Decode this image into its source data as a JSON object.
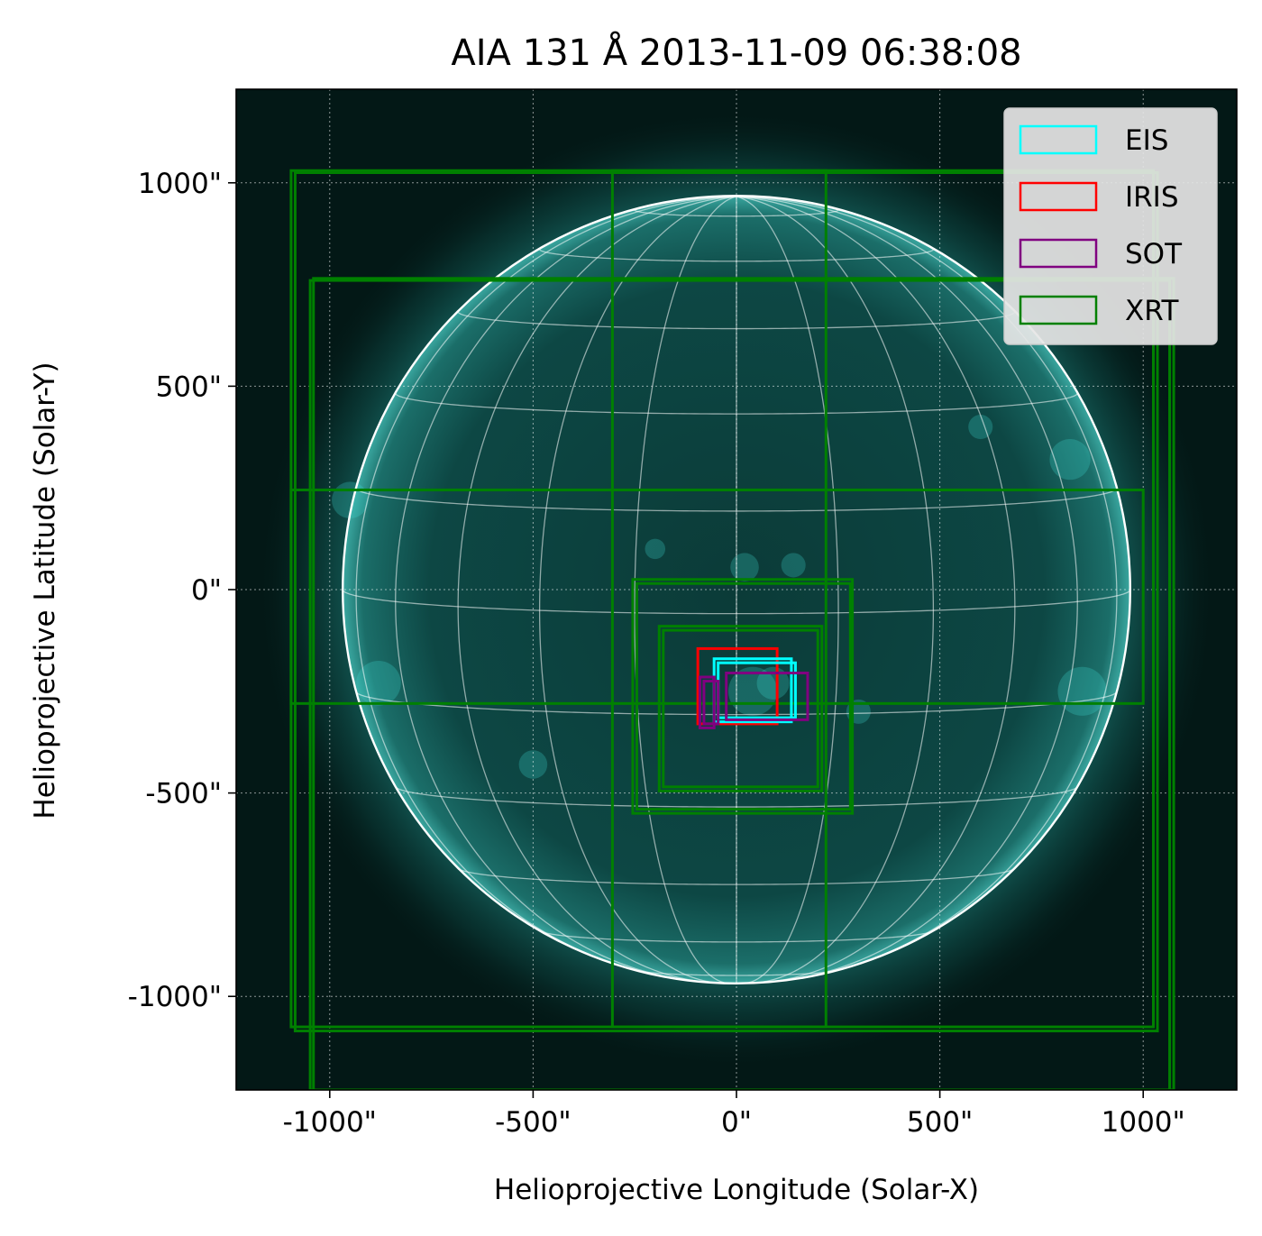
{
  "chart_data": {
    "type": "image",
    "title": "AIA 131 Å 2013-11-09 06:38:08",
    "xlabel": "Helioprojective Longitude (Solar-X)",
    "ylabel": "Helioprojective Latitude (Solar-Y)",
    "xlim": [
      -1230,
      1230
    ],
    "ylim": [
      -1230,
      1230
    ],
    "x_ticks": [
      {
        "value": -1000,
        "label": "-1000\""
      },
      {
        "value": -500,
        "label": "-500\""
      },
      {
        "value": 0,
        "label": "0\""
      },
      {
        "value": 500,
        "label": "500\""
      },
      {
        "value": 1000,
        "label": "1000\""
      }
    ],
    "y_ticks": [
      {
        "value": 1000,
        "label": "1000\""
      },
      {
        "value": 500,
        "label": "500\""
      },
      {
        "value": 0,
        "label": "0\""
      },
      {
        "value": -500,
        "label": "-500\""
      },
      {
        "value": -1000,
        "label": "-1000\""
      }
    ],
    "grid": true,
    "solar_radius_arcsec": 968,
    "background_color": "#031816",
    "legend": {
      "position": "top-right",
      "entries": [
        {
          "name": "EIS",
          "color": "#00ffff"
        },
        {
          "name": "IRIS",
          "color": "#ff0000"
        },
        {
          "name": "SOT",
          "color": "#800080"
        },
        {
          "name": "XRT",
          "color": "#008000"
        }
      ]
    },
    "fields_of_view": [
      {
        "instrument": "XRT",
        "x": [
          -1095,
          1025
        ],
        "y": [
          -1075,
          1030
        ]
      },
      {
        "instrument": "XRT",
        "x": [
          -1085,
          1035
        ],
        "y": [
          -1085,
          1025
        ]
      },
      {
        "instrument": "XRT",
        "x": [
          -1040,
          1075
        ],
        "y": [
          -1230,
          765
        ]
      },
      {
        "instrument": "XRT",
        "x": [
          -1048,
          1065
        ],
        "y": [
          -1230,
          760
        ]
      },
      {
        "instrument": "XRT",
        "x": [
          -305,
          220
        ],
        "y": [
          -1075,
          1030
        ]
      },
      {
        "instrument": "XRT",
        "x": [
          -1095,
          1000
        ],
        "y": [
          -280,
          245
        ]
      },
      {
        "instrument": "XRT",
        "x": [
          -255,
          285
        ],
        "y": [
          -550,
          25
        ]
      },
      {
        "instrument": "XRT",
        "x": [
          -245,
          280
        ],
        "y": [
          -540,
          15
        ]
      },
      {
        "instrument": "XRT",
        "x": [
          -190,
          210
        ],
        "y": [
          -495,
          -90
        ]
      },
      {
        "instrument": "XRT",
        "x": [
          -180,
          200
        ],
        "y": [
          -485,
          -100
        ]
      },
      {
        "instrument": "IRIS",
        "x": [
          -95,
          100
        ],
        "y": [
          -330,
          -145
        ]
      },
      {
        "instrument": "EIS",
        "x": [
          -55,
          135
        ],
        "y": [
          -325,
          -170
        ]
      },
      {
        "instrument": "EIS",
        "x": [
          -45,
          145
        ],
        "y": [
          -315,
          -180
        ]
      },
      {
        "instrument": "SOT",
        "x": [
          -25,
          175
        ],
        "y": [
          -320,
          -205
        ]
      },
      {
        "instrument": "SOT",
        "x": [
          -90,
          -55
        ],
        "y": [
          -340,
          -215
        ]
      },
      {
        "instrument": "SOT",
        "x": [
          -80,
          -45
        ],
        "y": [
          -330,
          -225
        ]
      }
    ]
  }
}
